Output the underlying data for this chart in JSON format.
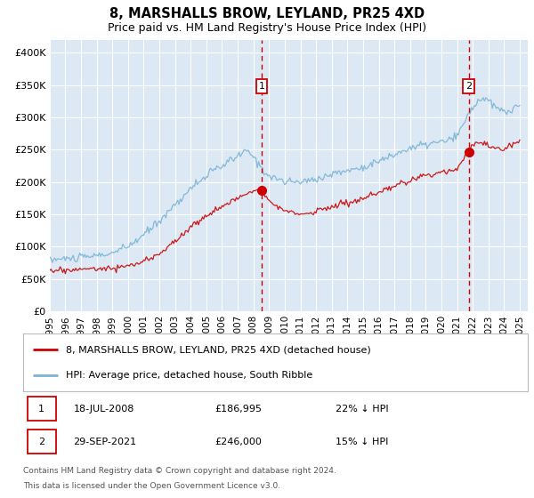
{
  "title": "8, MARSHALLS BROW, LEYLAND, PR25 4XD",
  "subtitle": "Price paid vs. HM Land Registry's House Price Index (HPI)",
  "background_color": "#ffffff",
  "plot_bg_color": "#dce9f5",
  "ylim": [
    0,
    420000
  ],
  "yticks": [
    0,
    50000,
    100000,
    150000,
    200000,
    250000,
    300000,
    350000,
    400000
  ],
  "ytick_labels": [
    "£0",
    "£50K",
    "£100K",
    "£150K",
    "£200K",
    "£250K",
    "£300K",
    "£350K",
    "£400K"
  ],
  "hpi_color": "#7ab3d4",
  "sold_color": "#cc0000",
  "marker1_year": 2008.54,
  "marker1_price": 186995,
  "marker1_label": "1",
  "marker1_date": "18-JUL-2008",
  "marker1_pct": "22% ↓ HPI",
  "marker2_year": 2021.74,
  "marker2_price": 246000,
  "marker2_label": "2",
  "marker2_date": "29-SEP-2021",
  "marker2_pct": "15% ↓ HPI",
  "legend_line1": "8, MARSHALLS BROW, LEYLAND, PR25 4XD (detached house)",
  "legend_line2": "HPI: Average price, detached house, South Ribble",
  "footnote1": "Contains HM Land Registry data © Crown copyright and database right 2024.",
  "footnote2": "This data is licensed under the Open Government Licence v3.0.",
  "xmin": 1995,
  "xmax": 2025.5
}
